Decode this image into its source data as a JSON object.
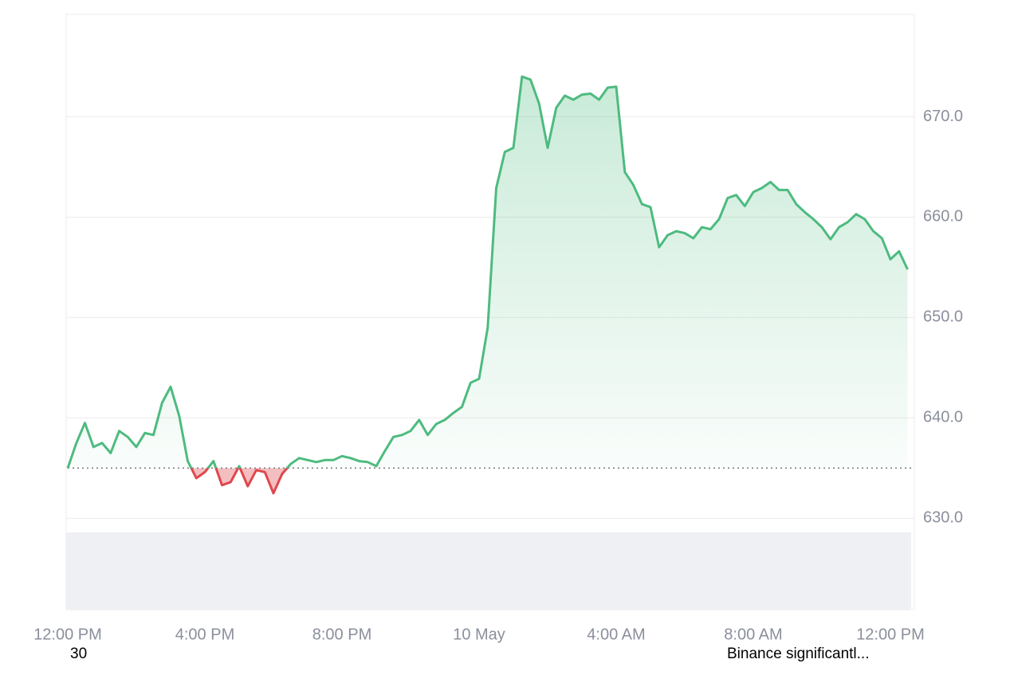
{
  "chart_data": {
    "type": "line",
    "categories": [
      "12:00 PM",
      null,
      null,
      null,
      null,
      null,
      null,
      null,
      null,
      null,
      null,
      null,
      null,
      null,
      null,
      null,
      "4:00 PM",
      null,
      null,
      null,
      null,
      null,
      null,
      null,
      null,
      null,
      null,
      null,
      null,
      null,
      null,
      null,
      "8:00 PM",
      null,
      null,
      null,
      null,
      null,
      null,
      null,
      null,
      null,
      null,
      null,
      null,
      null,
      null,
      null,
      "10 May",
      null,
      null,
      null,
      null,
      null,
      null,
      null,
      null,
      null,
      null,
      null,
      null,
      null,
      null,
      null,
      "4:00 AM",
      null,
      null,
      null,
      null,
      null,
      null,
      null,
      null,
      null,
      null,
      null,
      null,
      null,
      null,
      null,
      "8:00 AM",
      null,
      null,
      null,
      null,
      null,
      null,
      null,
      null,
      null,
      null,
      null,
      null,
      null,
      null,
      null,
      "12:00 PM",
      null,
      null
    ],
    "series": [
      {
        "color": "#4dbb7f",
        "below_color": "#e0474c",
        "values": [
          635.0,
          637.5,
          639.5,
          637.1,
          637.5,
          636.5,
          638.7,
          638.1,
          637.1,
          638.5,
          638.3,
          641.5,
          643.1,
          640.2,
          635.7,
          634.0,
          634.6,
          635.7,
          633.3,
          633.6,
          635.2,
          633.2,
          634.8,
          634.6,
          632.5,
          634.4,
          635.4,
          636.0,
          635.8,
          635.6,
          635.8,
          635.8,
          636.2,
          636.0,
          635.7,
          635.6,
          635.2,
          636.7,
          638.1,
          638.3,
          638.7,
          639.8,
          638.3,
          639.4,
          639.8,
          640.5,
          641.1,
          643.5,
          643.9,
          649.0,
          662.9,
          666.5,
          666.9,
          674.0,
          673.7,
          671.3,
          666.9,
          670.9,
          672.1,
          671.7,
          672.2,
          672.3,
          671.7,
          672.9,
          673.0,
          664.5,
          663.2,
          661.3,
          661.0,
          657.0,
          658.2,
          658.6,
          658.4,
          657.9,
          659.0,
          658.8,
          659.8,
          661.9,
          662.2,
          661.1,
          662.5,
          662.9,
          663.5,
          662.7,
          662.7,
          661.3,
          660.5,
          659.8,
          659.0,
          657.8,
          659.0,
          659.5,
          660.3,
          659.8,
          658.6,
          657.9,
          655.8,
          656.6,
          654.8
        ]
      }
    ],
    "ylim": [
      620.9,
      680.2
    ],
    "yticks": [
      {
        "value": 630,
        "label": "630.0"
      },
      {
        "value": 640,
        "label": "640.0"
      },
      {
        "value": 650,
        "label": "650.0"
      },
      {
        "value": 660,
        "label": "660.0"
      },
      {
        "value": 670,
        "label": "670.0"
      }
    ],
    "grid": true,
    "annotations": [
      "30",
      "Binance significantl..."
    ]
  }
}
